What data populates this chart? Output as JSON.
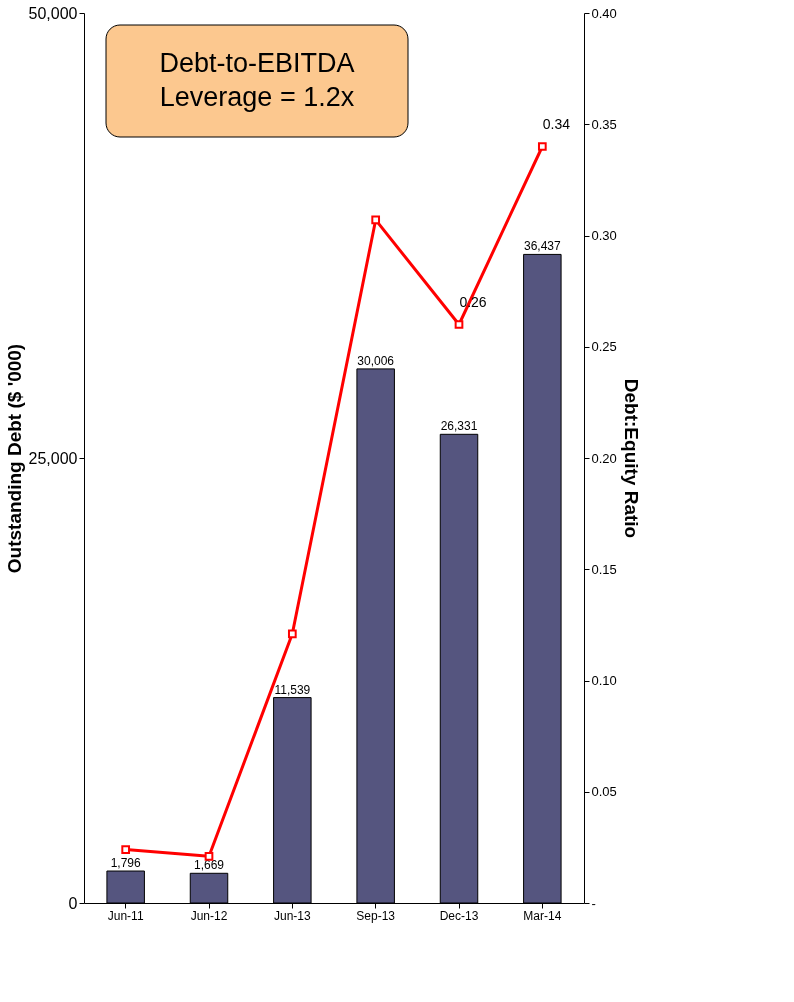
{
  "chart_data": {
    "type": "bar",
    "categories": [
      "Jun-11",
      "Jun-12",
      "Jun-13",
      "Sep-13",
      "Dec-13",
      "Mar-14"
    ],
    "series": [
      {
        "color": "#55557f",
        "values": [
          1796,
          1669,
          11539,
          30006,
          26331,
          36437
        ],
        "value_labels": [
          "1,796",
          "1,669",
          "11,539",
          "30,006",
          "26,331",
          "36,437"
        ]
      },
      {
        "type": "line",
        "axis": "y2",
        "color": "#ff0000",
        "values": [
          0.024,
          0.021,
          0.121,
          0.307,
          0.26,
          0.34
        ],
        "value_labels": [
          null,
          null,
          null,
          null,
          "0.26",
          "0.34"
        ],
        "marker": "square",
        "line_style": "solid"
      }
    ],
    "ylabel": "Outstanding Debt ($ '000)",
    "y2label": "Debt:Equity Ratio",
    "ylim": [
      0,
      50000
    ],
    "yticks": [
      0,
      {
        "value": 25000,
        "label": "25,000"
      },
      {
        "value": 50000,
        "label": "50,000"
      }
    ],
    "y2lim": [
      0,
      0.4
    ],
    "y2ticks": [
      {
        "value": 0,
        "label": "-"
      },
      0.05,
      {
        "value": 0.1,
        "label": "0.10"
      },
      0.15,
      {
        "value": 0.2,
        "label": "0.20"
      },
      0.25,
      {
        "value": 0.3,
        "label": "0.30"
      },
      0.35,
      {
        "value": 0.4,
        "label": "0.40"
      }
    ],
    "annotations": [
      "Debt-to-EBITDA\nLeverage = 1.2x"
    ],
    "grid": false
  }
}
